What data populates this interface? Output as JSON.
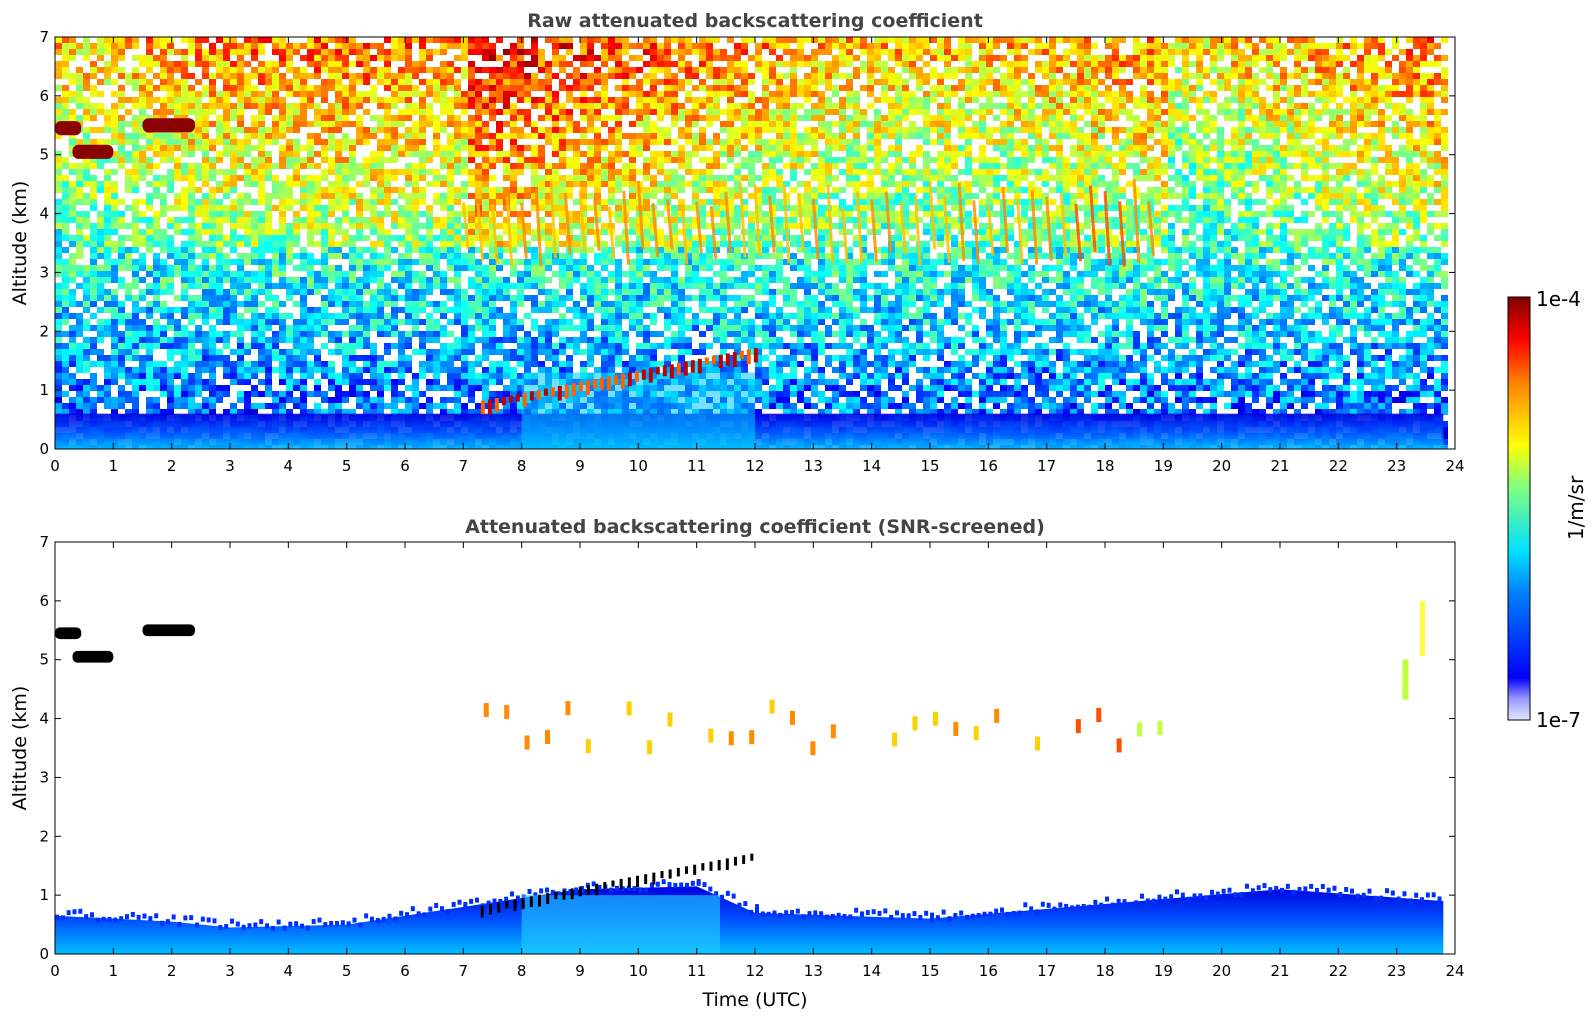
{
  "chart_data": [
    {
      "type": "heatmap",
      "title": "Raw attenuated backscattering coefficient",
      "ylabel": "Altitude (km)",
      "xlabel": "",
      "x_ticks": [
        "0",
        "1",
        "2",
        "3",
        "4",
        "5",
        "6",
        "7",
        "8",
        "9",
        "10",
        "11",
        "12",
        "13",
        "14",
        "15",
        "16",
        "17",
        "18",
        "19",
        "20",
        "21",
        "22",
        "23",
        "24"
      ],
      "y_ticks": [
        "0",
        "1",
        "2",
        "3",
        "4",
        "5",
        "6",
        "7"
      ],
      "xlim": [
        0,
        24
      ],
      "ylim": [
        0,
        7
      ],
      "features": [
        {
          "feature": "boundary-layer aerosol",
          "x_start": 0,
          "x_end": 23.8,
          "top_km": 0.6,
          "level": 0.35
        },
        {
          "feature": "low cloud",
          "x_start": 7.3,
          "x_end": 12.0,
          "base_km_start": 0.7,
          "base_km_end": 1.6,
          "level": 0.95
        },
        {
          "feature": "mid-level cloud",
          "x_start": 0.0,
          "x_end": 0.45,
          "alt_km": 5.45,
          "level": 1.0
        },
        {
          "feature": "mid-level cloud",
          "x_start": 0.3,
          "x_end": 1.0,
          "alt_km": 5.05,
          "level": 1.0
        },
        {
          "feature": "mid-level cloud",
          "x_start": 1.5,
          "x_end": 2.4,
          "alt_km": 5.5,
          "level": 1.0
        },
        {
          "feature": "virga / cirrus streaks",
          "x_start": 7.0,
          "x_end": 19.0,
          "alt_km_range": [
            3.1,
            4.6
          ],
          "level": 0.75
        }
      ]
    },
    {
      "type": "heatmap",
      "title": "Attenuated backscattering coefficient (SNR-screened)",
      "ylabel": "Altitude (km)",
      "xlabel": "Time (UTC)",
      "x_ticks": [
        "0",
        "1",
        "2",
        "3",
        "4",
        "5",
        "6",
        "7",
        "8",
        "9",
        "10",
        "11",
        "12",
        "13",
        "14",
        "15",
        "16",
        "17",
        "18",
        "19",
        "20",
        "21",
        "22",
        "23",
        "24"
      ],
      "y_ticks": [
        "0",
        "1",
        "2",
        "3",
        "4",
        "5",
        "6",
        "7"
      ],
      "xlim": [
        0,
        24
      ],
      "ylim": [
        0,
        7
      ],
      "mixed_layer_top_km": [
        {
          "x": 0,
          "y": 0.65
        },
        {
          "x": 2,
          "y": 0.55
        },
        {
          "x": 3,
          "y": 0.45
        },
        {
          "x": 5,
          "y": 0.5
        },
        {
          "x": 7,
          "y": 0.8
        },
        {
          "x": 9,
          "y": 1.1
        },
        {
          "x": 11,
          "y": 1.15
        },
        {
          "x": 12,
          "y": 0.7
        },
        {
          "x": 15,
          "y": 0.6
        },
        {
          "x": 18,
          "y": 0.85
        },
        {
          "x": 21,
          "y": 1.1
        },
        {
          "x": 23.8,
          "y": 0.9
        }
      ]
    }
  ],
  "colorbar": {
    "label": "1/m/sr",
    "max_label": "1e-4",
    "min_label": "1e-7",
    "scale": "log",
    "colormap": "jet"
  }
}
